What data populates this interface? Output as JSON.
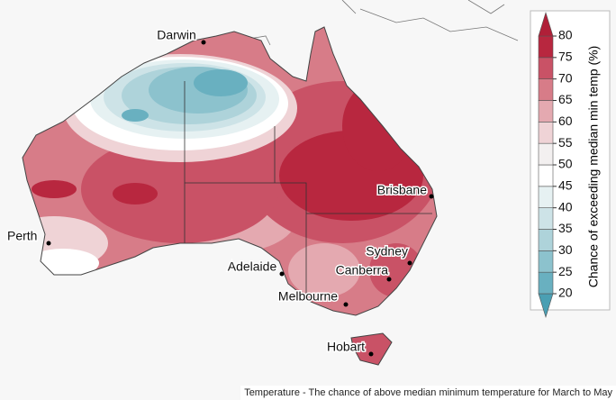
{
  "map": {
    "cities": [
      {
        "name": "Darwin"
      },
      {
        "name": "Brisbane"
      },
      {
        "name": "Perth"
      },
      {
        "name": "Sydney"
      },
      {
        "name": "Adelaide"
      },
      {
        "name": "Canberra"
      },
      {
        "name": "Melbourne"
      },
      {
        "name": "Hobart"
      }
    ],
    "legend": {
      "title": "Chance of exceeding median min temp (%)",
      "ticks": [
        20,
        25,
        30,
        35,
        40,
        45,
        50,
        55,
        60,
        65,
        70,
        75,
        80
      ],
      "colors": [
        "#4a9fb3",
        "#69b0c0",
        "#8cc2cd",
        "#aed3da",
        "#cde3e7",
        "#e6f1f2",
        "#ffffff",
        "#f3f0f0",
        "#efd3d6",
        "#e4a9b0",
        "#d77c88",
        "#c95266",
        "#b8273f",
        "#b01f38"
      ]
    },
    "caption": "Temperature - The chance of above median minimum temperature for March to May"
  }
}
